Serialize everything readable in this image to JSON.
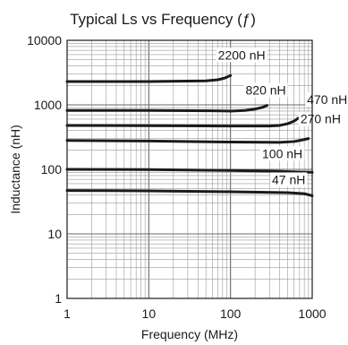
{
  "chart_data": {
    "type": "line",
    "title": "Typical Ls vs Frequency (ƒ)",
    "xlabel": "Frequency (MHz)",
    "ylabel": "Inductance (nH)",
    "x_scale": "log",
    "y_scale": "log",
    "xlim": [
      1,
      1000
    ],
    "ylim": [
      1,
      10000
    ],
    "grid": true,
    "x_ticks": [
      {
        "value": 1,
        "label": "1"
      },
      {
        "value": 10,
        "label": "10"
      },
      {
        "value": 100,
        "label": "100"
      },
      {
        "value": 1000,
        "label": "1000"
      }
    ],
    "y_ticks": [
      {
        "value": 1,
        "label": "1"
      },
      {
        "value": 10,
        "label": "10"
      },
      {
        "value": 100,
        "label": "100"
      },
      {
        "value": 1000,
        "label": "1000"
      },
      {
        "value": 10000,
        "label": "10000"
      }
    ],
    "series": [
      {
        "name": "2200 nH",
        "x": [
          1,
          10,
          50,
          70,
          85,
          100
        ],
        "y": [
          2300,
          2300,
          2350,
          2450,
          2600,
          2850
        ]
      },
      {
        "name": "820 nH",
        "x": [
          1,
          10,
          60,
          100,
          150,
          200,
          250,
          280
        ],
        "y": [
          820,
          820,
          810,
          800,
          820,
          860,
          920,
          980
        ]
      },
      {
        "name": "470 nH",
        "x": [
          1,
          10,
          100,
          300,
          400,
          500,
          600,
          700,
          800
        ],
        "y": [
          480,
          475,
          470,
          470,
          480,
          510,
          560,
          640,
          730
        ]
      },
      {
        "name": "270 nH",
        "x": [
          1,
          10,
          100,
          400,
          600,
          750,
          900
        ],
        "y": [
          280,
          275,
          265,
          262,
          270,
          285,
          300
        ]
      },
      {
        "name": "100 nH",
        "x": [
          1,
          10,
          100,
          400,
          700,
          1000
        ],
        "y": [
          100,
          99,
          96,
          93,
          91,
          90
        ]
      },
      {
        "name": "47 nH",
        "x": [
          1,
          10,
          100,
          500,
          800,
          1000
        ],
        "y": [
          47,
          46.5,
          45,
          43.5,
          42,
          39
        ]
      }
    ]
  }
}
